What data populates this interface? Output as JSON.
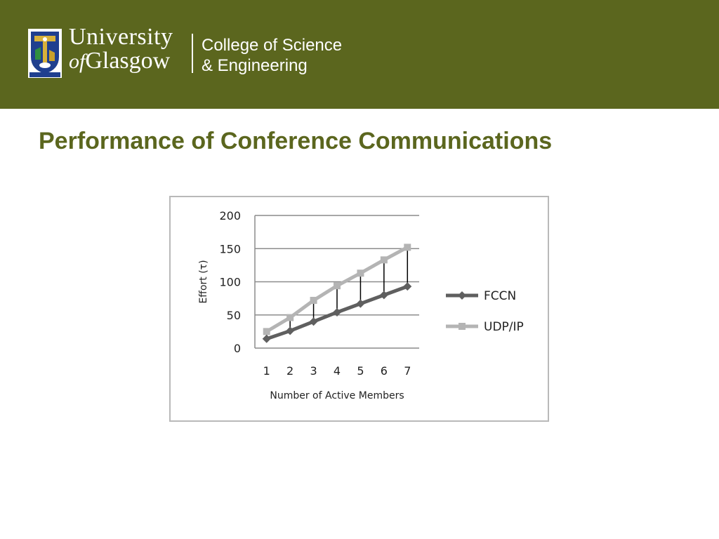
{
  "header": {
    "university_line1": "University",
    "university_of": "of",
    "university_line2": "Glasgow",
    "crest_motto": "VIA VERITAS VITA",
    "college_line1": "College of Science",
    "college_line2": "& Engineering",
    "background_color": "#5b661e"
  },
  "slide": {
    "title": "Performance of Conference Communications"
  },
  "chart_data": {
    "type": "line",
    "categories": [
      "1",
      "2",
      "3",
      "4",
      "5",
      "6",
      "7"
    ],
    "series": [
      {
        "name": "FCCN",
        "values": [
          14,
          26,
          40,
          54,
          67,
          80,
          93
        ],
        "color": "#5f5f5f",
        "marker": "diamond"
      },
      {
        "name": "UDP/IP",
        "values": [
          25,
          46,
          72,
          94,
          113,
          133,
          152
        ],
        "color": "#b4b4b4",
        "marker": "square"
      }
    ],
    "xlabel": "Number of Active Members",
    "ylabel": "Effort (τ)",
    "ylim": [
      0,
      200
    ],
    "yticks": [
      0,
      50,
      100,
      150,
      200
    ],
    "grid": true,
    "legend": "right",
    "drop_lines": true
  }
}
